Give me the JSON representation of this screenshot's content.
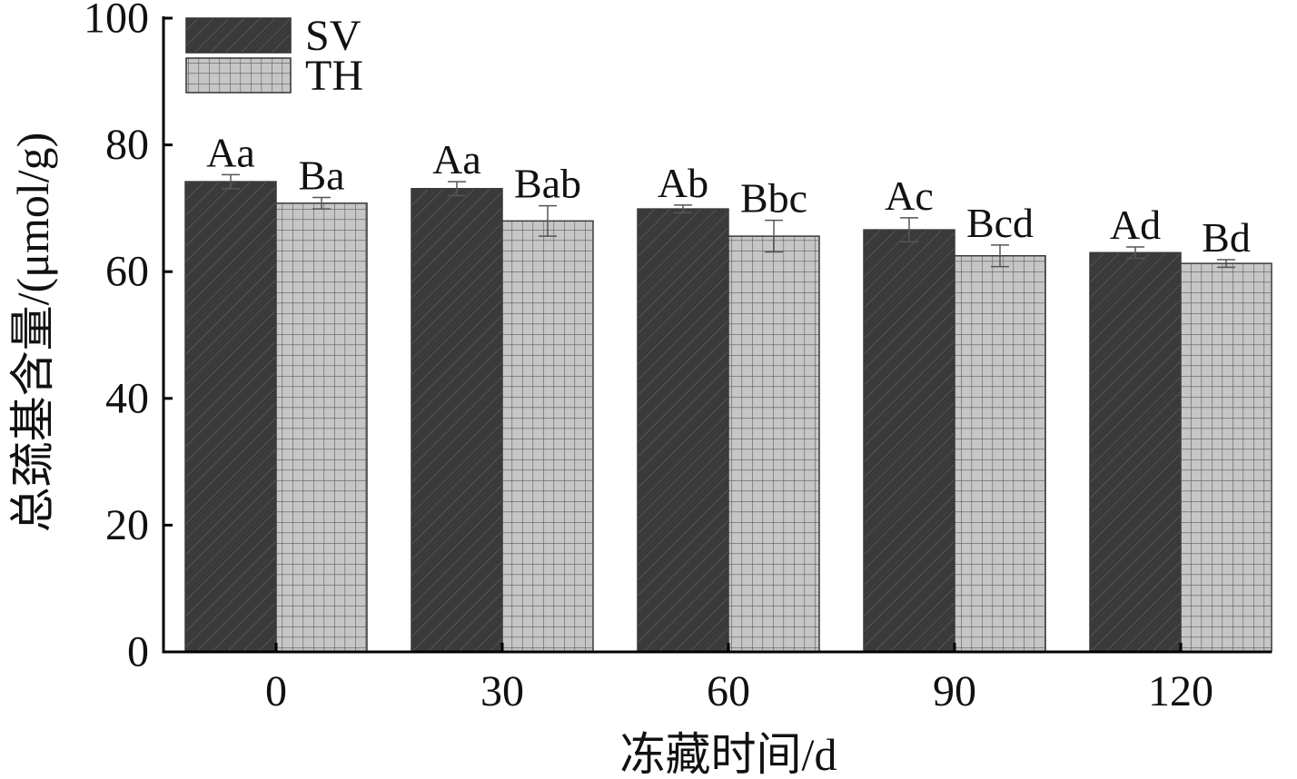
{
  "chart_data": {
    "type": "bar",
    "categories": [
      "0",
      "30",
      "60",
      "90",
      "120"
    ],
    "series": [
      {
        "name": "SV",
        "values": [
          74.2,
          73.1,
          69.9,
          66.6,
          63.0
        ],
        "errors": [
          1.1,
          1.1,
          0.6,
          1.9,
          0.9
        ],
        "labels": [
          "Aa",
          "Aa",
          "Ab",
          "Ac",
          "Ad"
        ],
        "color": "#3a3a3a",
        "pattern": "diagonal-hatch"
      },
      {
        "name": "TH",
        "values": [
          70.8,
          68.0,
          65.6,
          62.5,
          61.3
        ],
        "errors": [
          0.9,
          2.4,
          2.5,
          1.7,
          0.6
        ],
        "labels": [
          "Ba",
          "Bab",
          "Bbc",
          "Bcd",
          "Bd"
        ],
        "color": "#c6c6c6",
        "pattern": "grid"
      }
    ],
    "xlabel": "冻藏时间/d",
    "ylabel": "总巯基含量/(μmol/g)",
    "ylim": [
      0,
      100
    ],
    "yticks": [
      0,
      20,
      40,
      60,
      80,
      100
    ],
    "legend": "top-left",
    "grid": false
  }
}
